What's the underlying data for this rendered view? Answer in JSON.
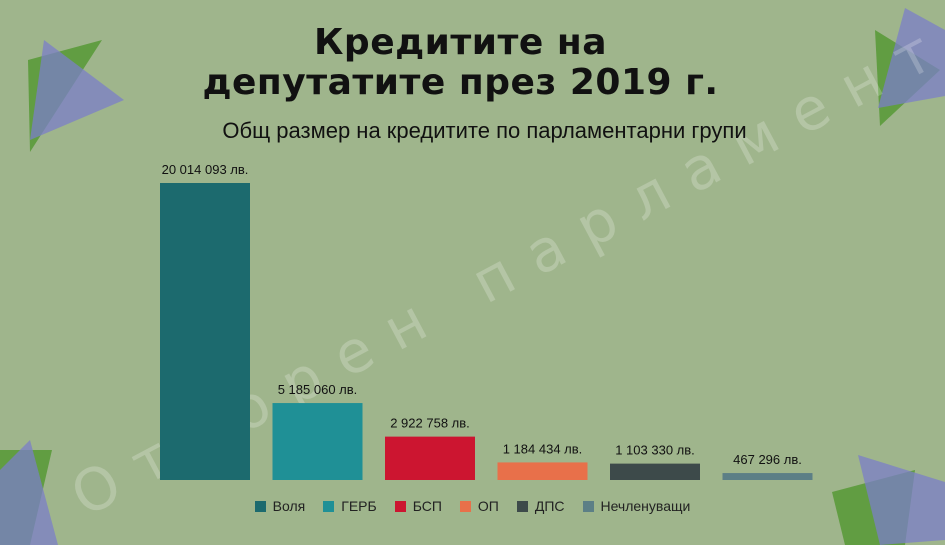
{
  "title_line1": "Кредитите на",
  "title_line2": "депутатите през 2019 г.",
  "subtitle": "Общ размер на кредитите по парламентарни групи",
  "watermark": "Отворен парламент",
  "chart_data": {
    "type": "bar",
    "categories": [
      "Воля",
      "ГЕРБ",
      "БСП",
      "ОП",
      "ДПС",
      "Нечленуващи"
    ],
    "values": [
      20014093,
      5185060,
      2922758,
      1184434,
      1103330,
      467296
    ],
    "value_labels": [
      "20 014 093 лв.",
      "5 185 060 лв.",
      "2 922 758 лв.",
      "1 184 434 лв.",
      "1 103 330 лв.",
      "467 296 лв."
    ],
    "colors": [
      "#1c6a6e",
      "#1f9096",
      "#cc1530",
      "#e8704a",
      "#3d4a4a",
      "#5c7f86"
    ],
    "legend_position": "bottom",
    "grid": false,
    "ylim": [
      0,
      20014093
    ]
  }
}
